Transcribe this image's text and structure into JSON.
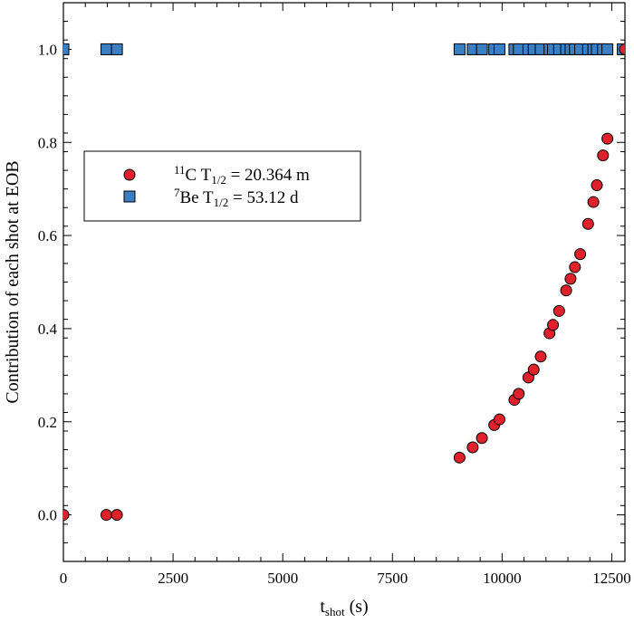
{
  "chart_data": {
    "type": "scatter",
    "xlabel": "t",
    "xlabel_sub": "shot",
    "xlabel_unit": " (s)",
    "ylabel": "Contribution of each shot at EOB",
    "xlim": [
      0,
      12800
    ],
    "ylim": [
      -0.1,
      1.1
    ],
    "xticks": [
      0,
      2500,
      5000,
      7500,
      10000,
      12500
    ],
    "xtick_labels": [
      "0",
      "2500",
      "5000",
      "7500",
      "10000",
      "12500"
    ],
    "yticks": [
      0.0,
      0.2,
      0.4,
      0.6,
      0.8,
      1.0
    ],
    "ytick_labels": [
      "0.0",
      "0.2",
      "0.4",
      "0.6",
      "0.8",
      "1.0"
    ],
    "grid": false,
    "legend_position": "upper-left",
    "series": [
      {
        "name_sup": "11",
        "name_main": "C T",
        "name_sub": "1/2",
        "name_rest": " = 20.364 m",
        "marker": "circle",
        "color": "#e0202a",
        "x": [
          0,
          980,
          1220,
          9030,
          9330,
          9540,
          9820,
          9940,
          10280,
          10380,
          10600,
          10720,
          10880,
          11080,
          11160,
          11300,
          11460,
          11560,
          11660,
          11780,
          11960,
          12080,
          12160,
          12300,
          12400,
          12800
        ],
        "y": [
          0.0,
          0.0,
          0.0,
          0.123,
          0.145,
          0.165,
          0.193,
          0.205,
          0.247,
          0.26,
          0.295,
          0.312,
          0.34,
          0.39,
          0.408,
          0.438,
          0.482,
          0.507,
          0.532,
          0.56,
          0.625,
          0.672,
          0.708,
          0.772,
          0.808,
          1.0
        ]
      },
      {
        "name_sup": "7",
        "name_main": "Be T",
        "name_sub": "1/2",
        "name_rest": " = 53.12 d",
        "marker": "square",
        "color": "#3a7fc4",
        "x": [
          0,
          980,
          1220,
          9030,
          9330,
          9540,
          9820,
          9940,
          10280,
          10380,
          10600,
          10720,
          10880,
          11080,
          11160,
          11300,
          11460,
          11560,
          11660,
          11780,
          11960,
          12080,
          12160,
          12300,
          12400,
          12750
        ],
        "y": [
          1.0,
          1.0,
          1.0,
          1.0,
          1.0,
          1.0,
          1.0,
          1.0,
          1.0,
          1.0,
          1.0,
          1.0,
          1.0,
          1.0,
          1.0,
          1.0,
          1.0,
          1.0,
          1.0,
          1.0,
          1.0,
          1.0,
          1.0,
          1.0,
          1.0,
          1.0
        ]
      }
    ]
  }
}
